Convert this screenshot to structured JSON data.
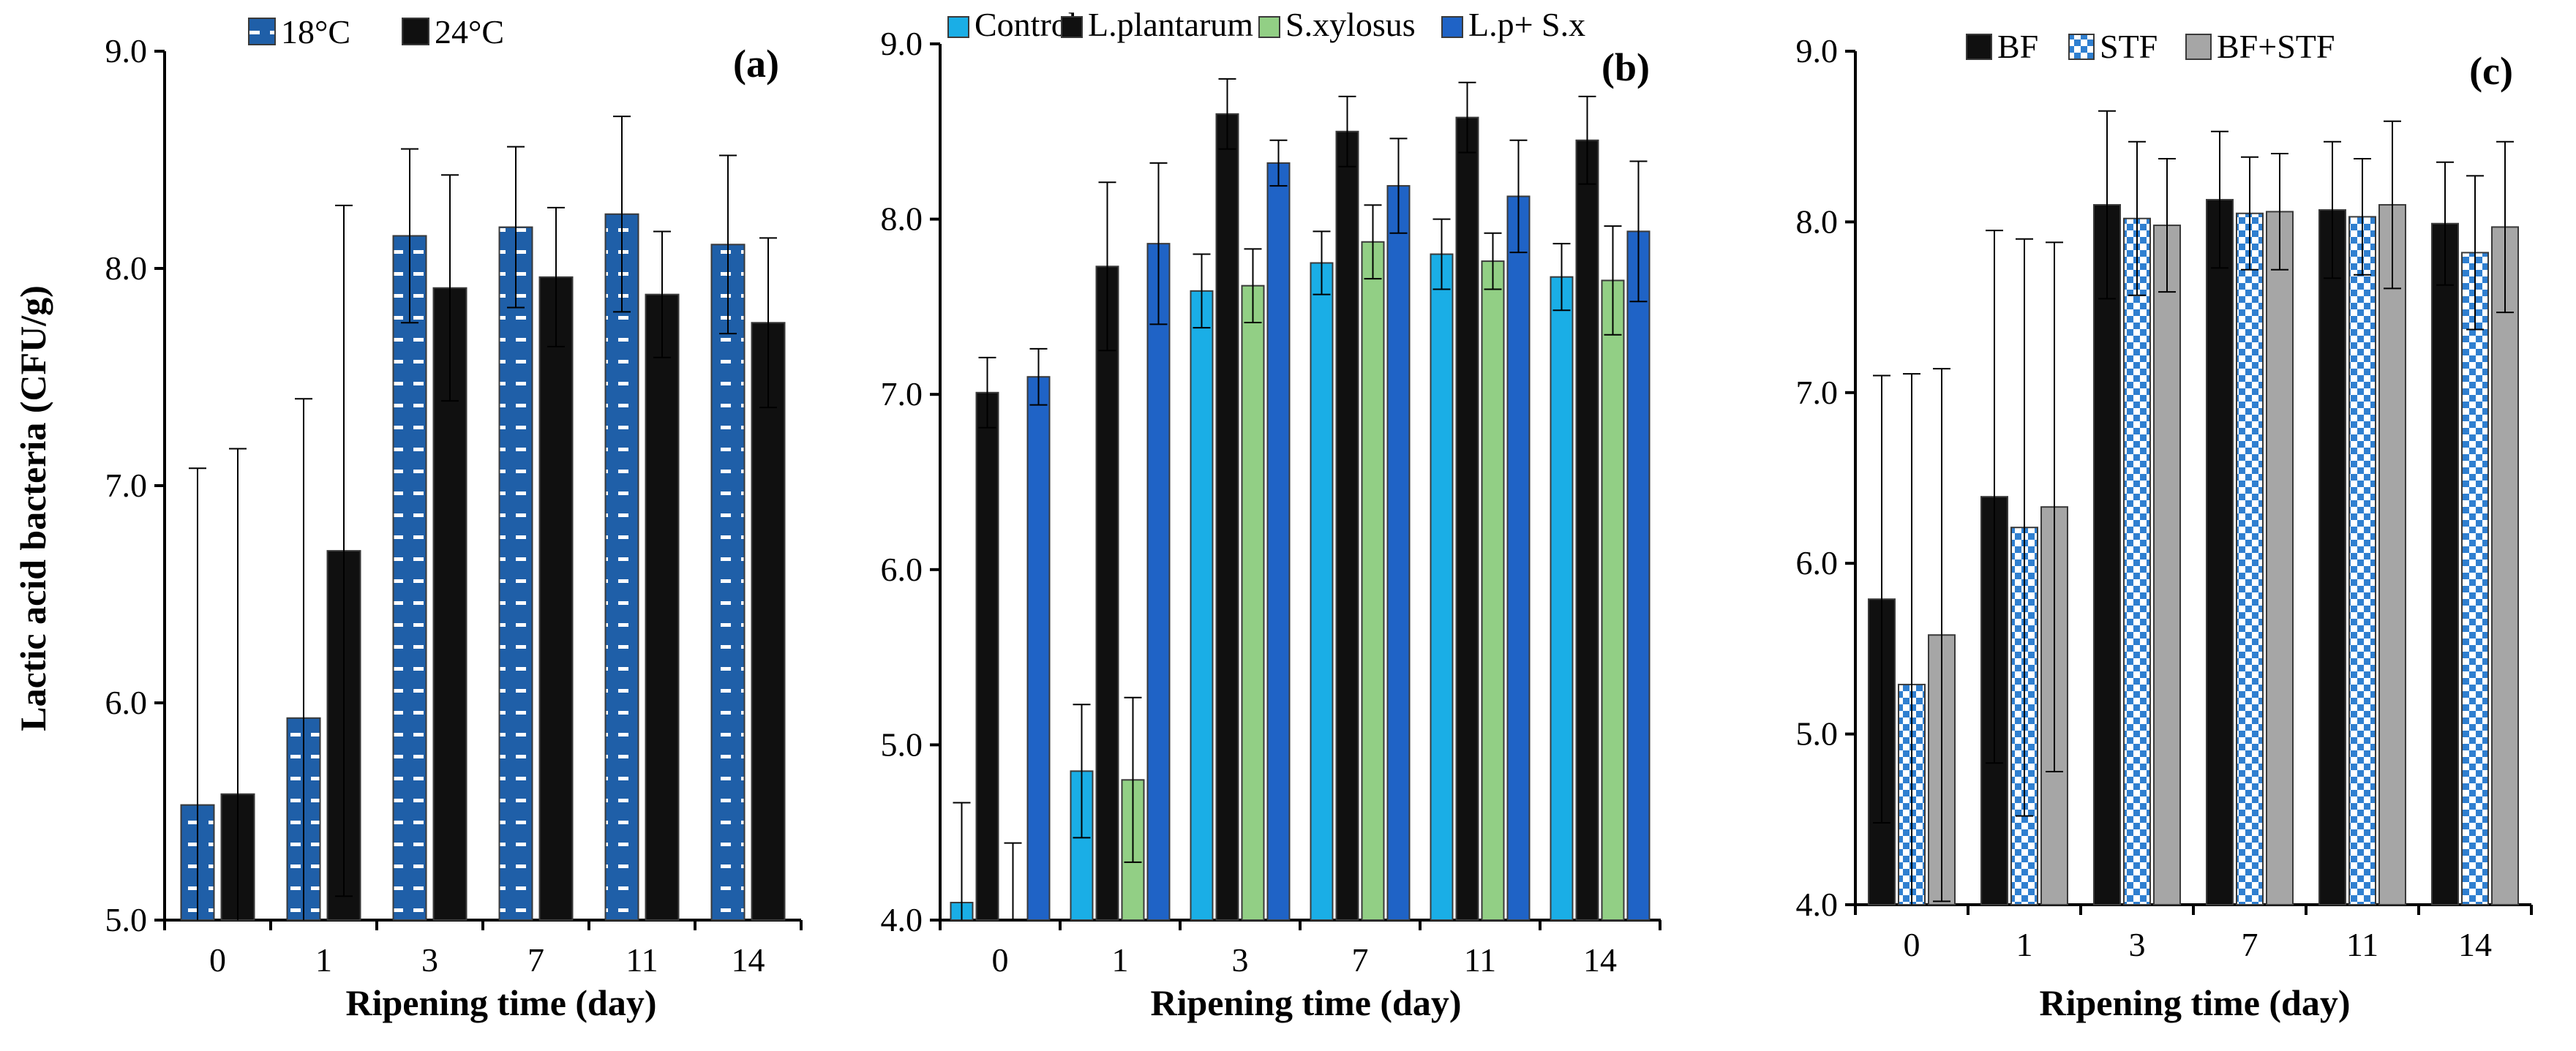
{
  "figure": {
    "y_axis_label": "Lactic acid bacteria (CFU/g)"
  },
  "colors": {
    "blue_dashed": "#1f5fa8",
    "black": "#101010",
    "cyan": "#1aaee6",
    "green": "#92cf85",
    "dark_blue": "#1f63c6",
    "blue_checker": "#2f7fd0",
    "grey": "#a6a6a6",
    "axis": "#000000"
  },
  "chart_data": [
    {
      "type": "bar",
      "panel_label": "(a)",
      "xlabel": "Ripening time (day)",
      "ylabel": "Lactic acid bacteria (CFU/g)",
      "categories": [
        "0",
        "1",
        "3",
        "7",
        "11",
        "14"
      ],
      "ylim": [
        5.0,
        9.0
      ],
      "y_ticks": [
        "5.0",
        "6.0",
        "7.0",
        "8.0",
        "9.0"
      ],
      "legend_position": "top-center",
      "series": [
        {
          "name": "18°C",
          "color": "#1f5fa8",
          "pattern": "dashed",
          "values": [
            5.53,
            5.93,
            8.15,
            8.19,
            8.25,
            8.11
          ],
          "errors": [
            1.55,
            1.47,
            0.4,
            0.37,
            0.45,
            0.41
          ]
        },
        {
          "name": "24°C",
          "color": "#101010",
          "pattern": "solid",
          "values": [
            5.58,
            6.7,
            7.91,
            7.96,
            7.88,
            7.75
          ],
          "errors": [
            1.59,
            1.59,
            0.52,
            0.32,
            0.29,
            0.39
          ]
        }
      ]
    },
    {
      "type": "bar",
      "panel_label": "(b)",
      "xlabel": "Ripening time (day)",
      "ylabel": "",
      "categories": [
        "0",
        "1",
        "3",
        "7",
        "11",
        "14"
      ],
      "ylim": [
        4.0,
        9.0
      ],
      "y_ticks": [
        "4.0",
        "5.0",
        "6.0",
        "7.0",
        "8.0",
        "9.0"
      ],
      "legend_position": "top",
      "series": [
        {
          "name": "Control",
          "color": "#1aaee6",
          "pattern": "solid",
          "values": [
            4.1,
            4.85,
            7.59,
            7.75,
            7.8,
            7.67
          ],
          "errors": [
            0.57,
            0.38,
            0.21,
            0.18,
            0.2,
            0.19
          ]
        },
        {
          "name": "L.plantarum",
          "color": "#101010",
          "pattern": "solid",
          "values": [
            7.01,
            7.73,
            8.6,
            8.5,
            8.58,
            8.45
          ],
          "errors": [
            0.2,
            0.48,
            0.2,
            0.2,
            0.2,
            0.25
          ]
        },
        {
          "name": "S.xylosus",
          "color": "#92cf85",
          "pattern": "solid",
          "values": [
            4.0,
            4.8,
            7.62,
            7.87,
            7.76,
            7.65
          ],
          "errors": [
            0.44,
            0.47,
            0.21,
            0.21,
            0.16,
            0.31
          ]
        },
        {
          "name": "L.p+ S.x",
          "color": "#1f63c6",
          "pattern": "solid",
          "values": [
            7.1,
            7.86,
            8.32,
            8.19,
            8.13,
            7.93
          ],
          "errors": [
            0.16,
            0.46,
            0.13,
            0.27,
            0.32,
            0.4
          ]
        }
      ]
    },
    {
      "type": "bar",
      "panel_label": "(c)",
      "xlabel": "Ripening time (day)",
      "ylabel": "",
      "categories": [
        "0",
        "1",
        "3",
        "7",
        "11",
        "14"
      ],
      "ylim": [
        4.0,
        9.0
      ],
      "y_ticks": [
        "4.0",
        "5.0",
        "6.0",
        "7.0",
        "8.0",
        "9.0"
      ],
      "legend_position": "top",
      "series": [
        {
          "name": "BF",
          "color": "#101010",
          "pattern": "solid",
          "values": [
            5.79,
            6.39,
            8.1,
            8.13,
            8.07,
            7.99
          ],
          "errors": [
            1.31,
            1.56,
            0.55,
            0.4,
            0.4,
            0.36
          ]
        },
        {
          "name": "STF",
          "color": "#2f7fd0",
          "pattern": "checker",
          "values": [
            5.29,
            6.21,
            8.02,
            8.05,
            8.03,
            7.82
          ],
          "errors": [
            1.82,
            1.69,
            0.45,
            0.33,
            0.34,
            0.45
          ]
        },
        {
          "name": "BF+STF",
          "color": "#a6a6a6",
          "pattern": "solid",
          "values": [
            5.58,
            6.33,
            7.98,
            8.06,
            8.1,
            7.97
          ],
          "errors": [
            1.56,
            1.55,
            0.39,
            0.34,
            0.49,
            0.5
          ]
        }
      ]
    }
  ]
}
